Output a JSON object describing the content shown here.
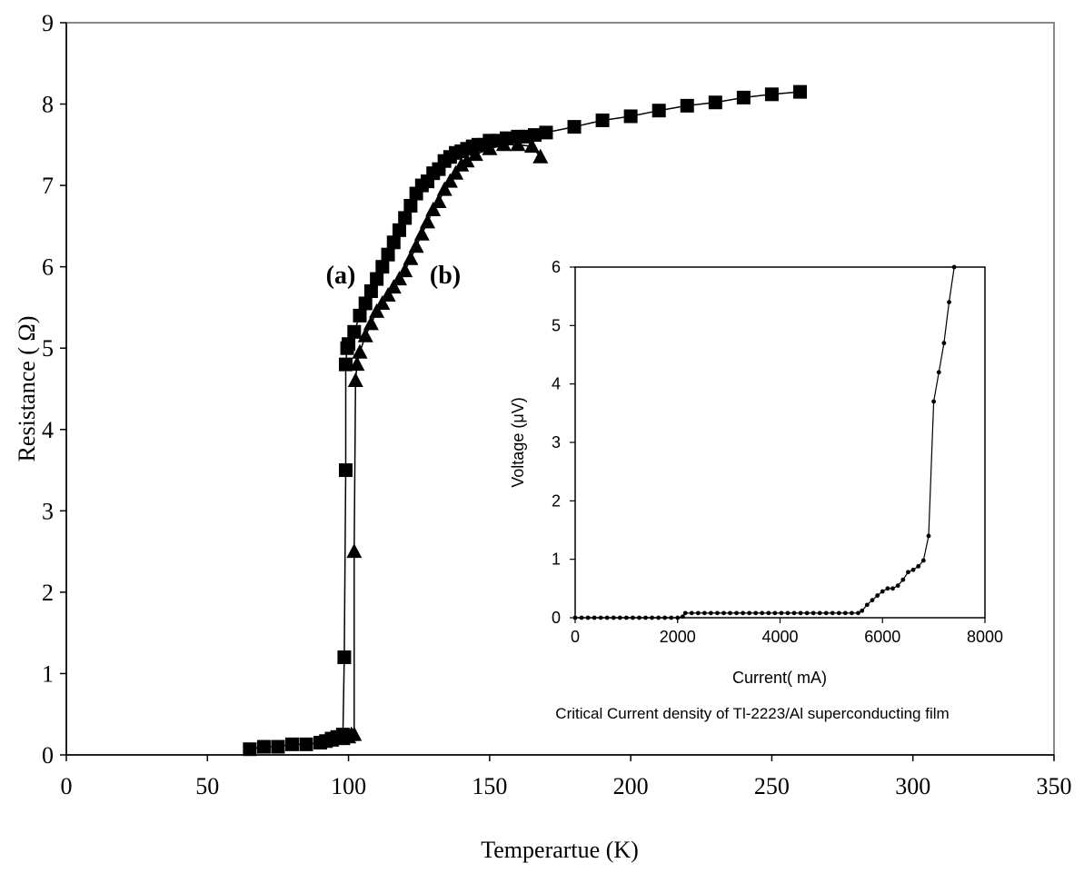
{
  "chart_data": [
    {
      "type": "scatter",
      "title": "",
      "xlabel": "Temperartue (K)",
      "ylabel": "Resistance ( Ω)",
      "xlim": [
        0,
        350
      ],
      "ylim": [
        0,
        9
      ],
      "xticks": [
        "0",
        "50",
        "100",
        "150",
        "200",
        "250",
        "300",
        "350"
      ],
      "yticks": [
        "0",
        "1",
        "2",
        "3",
        "4",
        "5",
        "6",
        "7",
        "8",
        "9"
      ],
      "grid": false,
      "legend": "none",
      "annotations": [
        "(a)",
        "(b)"
      ],
      "series": [
        {
          "marker": "square",
          "color": "#000000",
          "x": [
            65,
            70,
            75,
            80,
            85,
            90,
            92,
            94,
            96,
            98,
            98.5,
            99,
            99,
            99.5,
            100,
            102,
            104,
            106,
            108,
            110,
            112,
            114,
            116,
            118,
            120,
            122,
            124,
            126,
            128,
            130,
            132,
            134,
            136,
            138,
            140,
            142,
            144,
            146,
            148,
            150,
            153,
            156,
            160,
            163,
            166,
            170,
            180,
            190,
            200,
            210,
            220,
            230,
            240,
            250,
            260
          ],
          "y": [
            0.07,
            0.1,
            0.1,
            0.13,
            0.13,
            0.15,
            0.17,
            0.2,
            0.22,
            0.25,
            1.2,
            3.5,
            4.8,
            5.0,
            5.05,
            5.2,
            5.4,
            5.55,
            5.7,
            5.85,
            6.0,
            6.15,
            6.3,
            6.45,
            6.6,
            6.75,
            6.9,
            7.0,
            7.05,
            7.15,
            7.2,
            7.3,
            7.35,
            7.4,
            7.42,
            7.45,
            7.48,
            7.5,
            7.5,
            7.55,
            7.55,
            7.58,
            7.6,
            7.6,
            7.62,
            7.65,
            7.72,
            7.8,
            7.85,
            7.92,
            7.98,
            8.02,
            8.08,
            8.12,
            8.15
          ]
        },
        {
          "marker": "triangle",
          "color": "#000000",
          "x": [
            94,
            96,
            98,
            100,
            101,
            102,
            102,
            102.5,
            103,
            104,
            106,
            108,
            110,
            112,
            114,
            116,
            118,
            120,
            122,
            124,
            126,
            128,
            130,
            132,
            134,
            136,
            138,
            140,
            142,
            145,
            150,
            155,
            160,
            165,
            168
          ],
          "y": [
            0.18,
            0.2,
            0.2,
            0.22,
            0.25,
            0.25,
            2.5,
            4.6,
            4.8,
            4.95,
            5.15,
            5.3,
            5.45,
            5.55,
            5.65,
            5.75,
            5.85,
            5.95,
            6.1,
            6.25,
            6.4,
            6.55,
            6.7,
            6.8,
            6.95,
            7.05,
            7.15,
            7.25,
            7.3,
            7.38,
            7.45,
            7.5,
            7.5,
            7.48,
            7.35
          ]
        }
      ]
    },
    {
      "type": "line",
      "title": "",
      "caption": "Critical Current density of Tl-2223/Al superconducting film",
      "xlabel": "Current( mA)",
      "ylabel": "Voltage (μV)",
      "xlim": [
        0,
        8000
      ],
      "ylim": [
        0,
        6
      ],
      "xticks": [
        "0",
        "2000",
        "4000",
        "6000",
        "8000"
      ],
      "yticks": [
        "0",
        "1",
        "2",
        "3",
        "4",
        "5",
        "6"
      ],
      "grid": false,
      "legend": "none",
      "series": [
        {
          "marker": "dot",
          "color": "#000000",
          "x": [
            0,
            125,
            250,
            375,
            500,
            625,
            750,
            875,
            1000,
            1125,
            1250,
            1375,
            1500,
            1625,
            1750,
            1875,
            2000,
            2100,
            2150,
            2275,
            2400,
            2525,
            2650,
            2775,
            2900,
            3025,
            3150,
            3275,
            3400,
            3525,
            3650,
            3775,
            3900,
            4025,
            4150,
            4275,
            4400,
            4525,
            4650,
            4775,
            4900,
            5025,
            5150,
            5275,
            5400,
            5525,
            5600,
            5700,
            5800,
            5900,
            6000,
            6100,
            6200,
            6300,
            6400,
            6500,
            6600,
            6700,
            6800,
            6900,
            7000,
            7100,
            7200,
            7300,
            7400
          ],
          "y": [
            0,
            0,
            0,
            0,
            0,
            0,
            0,
            0,
            0,
            0,
            0,
            0,
            0,
            0,
            0,
            0,
            0,
            0.02,
            0.08,
            0.08,
            0.08,
            0.08,
            0.08,
            0.08,
            0.08,
            0.08,
            0.08,
            0.08,
            0.08,
            0.08,
            0.08,
            0.08,
            0.08,
            0.08,
            0.08,
            0.08,
            0.08,
            0.08,
            0.08,
            0.08,
            0.08,
            0.08,
            0.08,
            0.08,
            0.08,
            0.08,
            0.12,
            0.22,
            0.3,
            0.38,
            0.45,
            0.5,
            0.5,
            0.55,
            0.65,
            0.78,
            0.82,
            0.88,
            0.98,
            1.4,
            3.7,
            4.2,
            4.7,
            5.4,
            6.0
          ]
        }
      ]
    }
  ]
}
